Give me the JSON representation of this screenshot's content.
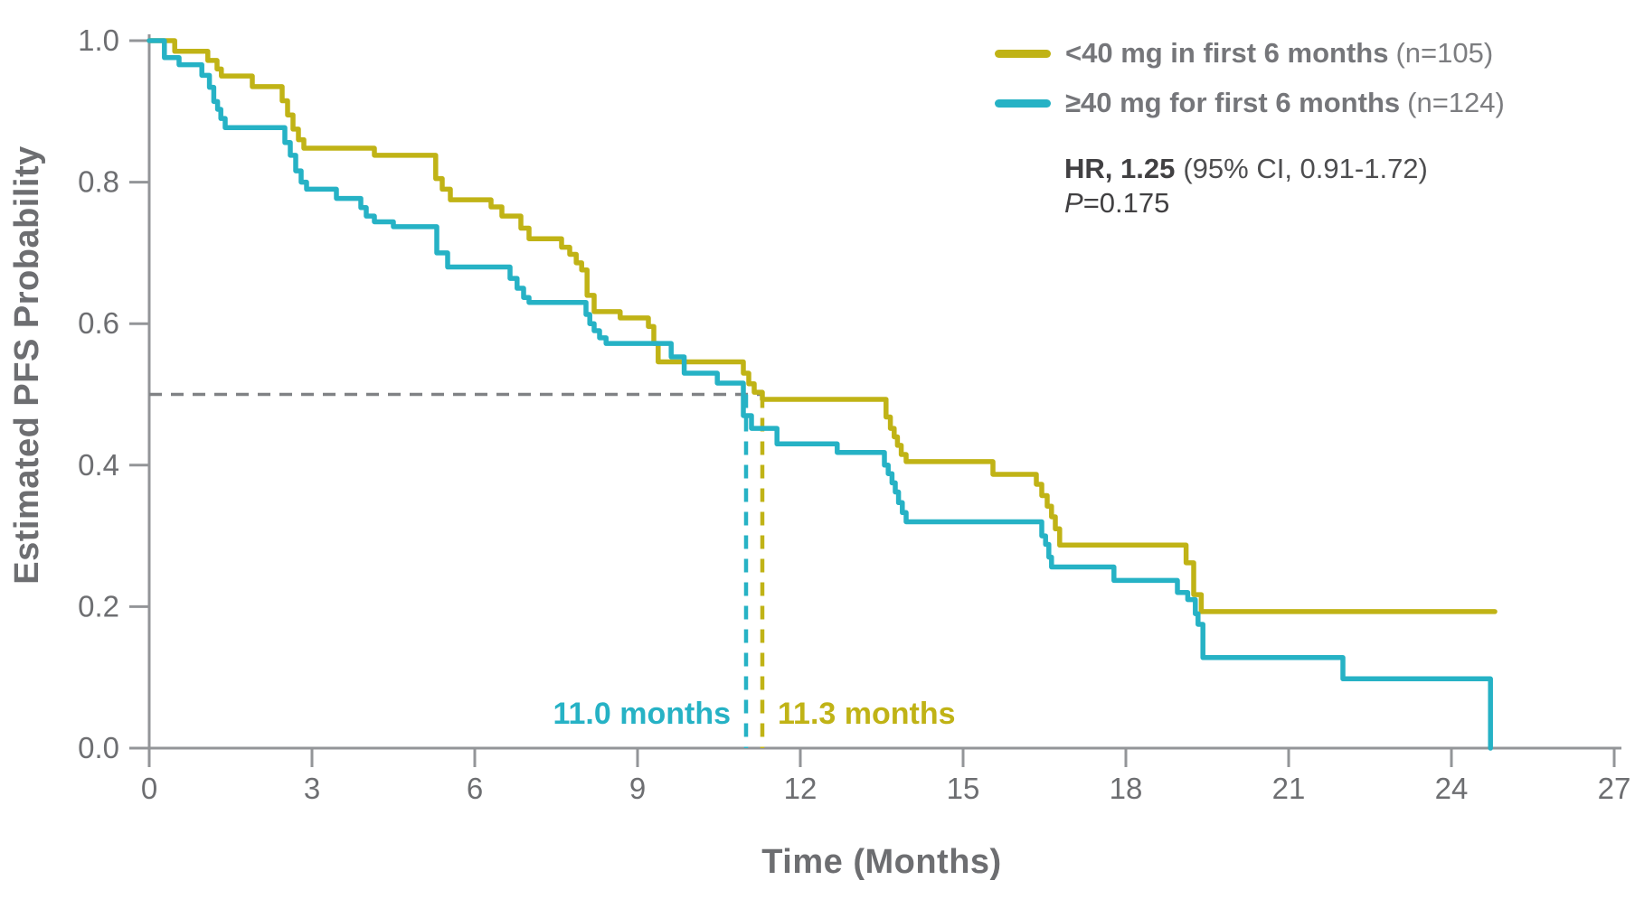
{
  "chart_data": {
    "type": "line",
    "subtype": "kaplan-meier-step",
    "xlabel": "Time (Months)",
    "ylabel": "Estimated PFS Probability",
    "xlim": [
      0,
      27
    ],
    "ylim": [
      0.0,
      1.0
    ],
    "grid": false,
    "legend_position": "top-right",
    "x_ticks": [
      {
        "v": 0,
        "label": "0"
      },
      {
        "v": 3,
        "label": "3"
      },
      {
        "v": 6,
        "label": "6"
      },
      {
        "v": 9,
        "label": "9"
      },
      {
        "v": 12,
        "label": "12"
      },
      {
        "v": 15,
        "label": "15"
      },
      {
        "v": 18,
        "label": "18"
      },
      {
        "v": 21,
        "label": "21"
      },
      {
        "v": 24,
        "label": "24"
      },
      {
        "v": 27,
        "label": "27"
      }
    ],
    "y_ticks": [
      {
        "v": 1.0,
        "label": "1.0"
      },
      {
        "v": 0.8,
        "label": "0.8"
      },
      {
        "v": 0.6,
        "label": "0.6"
      },
      {
        "v": 0.4,
        "label": "0.4"
      },
      {
        "v": 0.2,
        "label": "0.2"
      },
      {
        "v": 0.0,
        "label": "0.0"
      }
    ],
    "reference_line": {
      "probability": 0.5,
      "style": "dashed",
      "color": "#808285"
    },
    "series": [
      {
        "name": "<40 mg in first 6 months",
        "n_label": "(n=105)",
        "n": 105,
        "color": "#c0b316",
        "median_months": 11.3,
        "median_label": "11.3 months",
        "points": [
          [
            0,
            1.0
          ],
          [
            0.47,
            0.985
          ],
          [
            1.08,
            0.972
          ],
          [
            1.25,
            0.96
          ],
          [
            1.33,
            0.95
          ],
          [
            1.9,
            0.935
          ],
          [
            2.45,
            0.915
          ],
          [
            2.55,
            0.895
          ],
          [
            2.65,
            0.875
          ],
          [
            2.75,
            0.86
          ],
          [
            2.85,
            0.848
          ],
          [
            4.15,
            0.838
          ],
          [
            5.28,
            0.805
          ],
          [
            5.4,
            0.79
          ],
          [
            5.55,
            0.775
          ],
          [
            6.3,
            0.765
          ],
          [
            6.5,
            0.752
          ],
          [
            6.85,
            0.735
          ],
          [
            7.0,
            0.72
          ],
          [
            7.6,
            0.708
          ],
          [
            7.75,
            0.698
          ],
          [
            7.87,
            0.686
          ],
          [
            7.97,
            0.676
          ],
          [
            8.07,
            0.64
          ],
          [
            8.2,
            0.617
          ],
          [
            8.68,
            0.608
          ],
          [
            9.2,
            0.596
          ],
          [
            9.3,
            0.572
          ],
          [
            9.38,
            0.546
          ],
          [
            10.95,
            0.53
          ],
          [
            11.05,
            0.515
          ],
          [
            11.15,
            0.503
          ],
          [
            11.3,
            0.493
          ],
          [
            13.58,
            0.468
          ],
          [
            13.66,
            0.452
          ],
          [
            13.73,
            0.44
          ],
          [
            13.79,
            0.428
          ],
          [
            13.86,
            0.415
          ],
          [
            13.95,
            0.405
          ],
          [
            15.55,
            0.387
          ],
          [
            16.35,
            0.373
          ],
          [
            16.45,
            0.357
          ],
          [
            16.55,
            0.342
          ],
          [
            16.63,
            0.327
          ],
          [
            16.7,
            0.31
          ],
          [
            16.78,
            0.287
          ],
          [
            19.11,
            0.262
          ],
          [
            19.25,
            0.217
          ],
          [
            19.39,
            0.193
          ],
          [
            24.8,
            0.193
          ]
        ]
      },
      {
        "name": "≥40 mg for first 6 months",
        "n_label": "(n=124)",
        "n": 124,
        "color": "#26b2c5",
        "median_months": 11.0,
        "median_label": "11.0 months",
        "points": [
          [
            0,
            1.0
          ],
          [
            0.28,
            0.976
          ],
          [
            0.55,
            0.966
          ],
          [
            0.97,
            0.951
          ],
          [
            1.11,
            0.934
          ],
          [
            1.19,
            0.914
          ],
          [
            1.26,
            0.903
          ],
          [
            1.32,
            0.89
          ],
          [
            1.4,
            0.877
          ],
          [
            2.5,
            0.856
          ],
          [
            2.6,
            0.838
          ],
          [
            2.7,
            0.816
          ],
          [
            2.8,
            0.8
          ],
          [
            2.9,
            0.79
          ],
          [
            3.45,
            0.777
          ],
          [
            3.9,
            0.764
          ],
          [
            4.0,
            0.752
          ],
          [
            4.15,
            0.744
          ],
          [
            4.5,
            0.737
          ],
          [
            5.3,
            0.7
          ],
          [
            5.5,
            0.68
          ],
          [
            6.65,
            0.664
          ],
          [
            6.78,
            0.65
          ],
          [
            6.9,
            0.637
          ],
          [
            7.0,
            0.63
          ],
          [
            8.05,
            0.613
          ],
          [
            8.12,
            0.6
          ],
          [
            8.2,
            0.59
          ],
          [
            8.3,
            0.58
          ],
          [
            8.42,
            0.572
          ],
          [
            9.62,
            0.553
          ],
          [
            9.86,
            0.53
          ],
          [
            10.47,
            0.516
          ],
          [
            10.95,
            0.47
          ],
          [
            11.1,
            0.452
          ],
          [
            11.57,
            0.43
          ],
          [
            12.68,
            0.418
          ],
          [
            13.55,
            0.4
          ],
          [
            13.62,
            0.388
          ],
          [
            13.69,
            0.375
          ],
          [
            13.75,
            0.362
          ],
          [
            13.81,
            0.347
          ],
          [
            13.88,
            0.333
          ],
          [
            13.95,
            0.32
          ],
          [
            16.45,
            0.3
          ],
          [
            16.52,
            0.288
          ],
          [
            16.58,
            0.27
          ],
          [
            16.63,
            0.256
          ],
          [
            17.78,
            0.237
          ],
          [
            18.95,
            0.22
          ],
          [
            19.14,
            0.21
          ],
          [
            19.28,
            0.19
          ],
          [
            19.33,
            0.175
          ],
          [
            19.42,
            0.128
          ],
          [
            22.0,
            0.098
          ],
          [
            24.72,
            0.098
          ],
          [
            24.72,
            0.0
          ]
        ]
      }
    ],
    "annotations": {
      "hr_label": "HR, 1.25",
      "ci_label": "(95% CI, 0.91-1.72)",
      "p_prefix": "P",
      "p_value": "=0.175"
    },
    "colors": {
      "axis": "#939598",
      "tick_label": "#6d6e71",
      "dashed_reference": "#808285",
      "stats_text": "#414042",
      "legend_text": "#75767a"
    }
  }
}
